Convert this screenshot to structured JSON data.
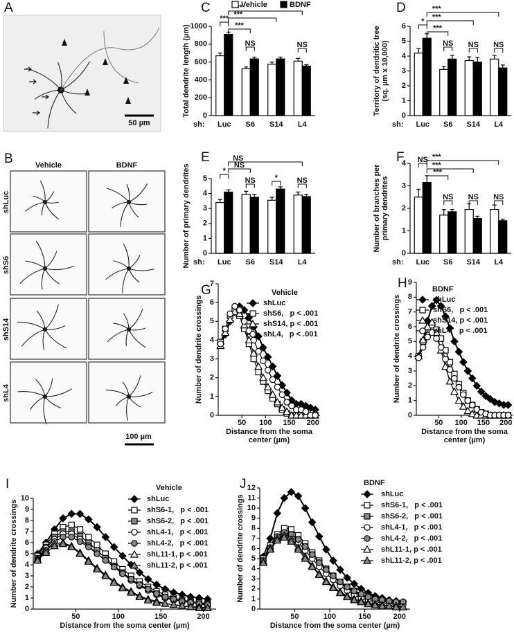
{
  "micrographs": [
    {
      "panel": "A",
      "scale_bar": "50 µm"
    },
    {
      "panel": "B",
      "columns": [
        "Vehicle",
        "BDNF"
      ],
      "rows": [
        "shLuc",
        "shS6",
        "shS14",
        "shL4"
      ],
      "scale_bar": "100 µm"
    }
  ],
  "chart_data": [
    {
      "panel": "C",
      "type": "bar",
      "ylabel": [
        "Total dendrite length (µm)"
      ],
      "xlabel": "sh:",
      "categories": [
        "Luc",
        "S6",
        "S14",
        "L4"
      ],
      "ylim": [
        0,
        1000
      ],
      "yticks": [
        0,
        200,
        400,
        600,
        800,
        1000
      ],
      "legend": true,
      "series": [
        {
          "name": "Vehicle",
          "color": "#ffffff",
          "values": [
            670,
            525,
            575,
            610
          ],
          "errors": [
            30,
            20,
            25,
            30
          ]
        },
        {
          "name": "BDNF",
          "color": "#000000",
          "values": [
            910,
            635,
            635,
            555
          ],
          "errors": [
            25,
            20,
            20,
            15
          ]
        }
      ],
      "annotations": [
        "***",
        "***",
        "***",
        "***",
        "NS",
        "NS"
      ]
    },
    {
      "panel": "D",
      "type": "bar",
      "ylabel": [
        "Territory of dendritic tree",
        "(sq. µm x 10,000)"
      ],
      "xlabel": "sh:",
      "categories": [
        "Luc",
        "S6",
        "S14",
        "L4"
      ],
      "ylim": [
        0,
        6
      ],
      "yticks": [
        0,
        1,
        2,
        3,
        4,
        5,
        6
      ],
      "series": [
        {
          "color": "#ffffff",
          "values": [
            4.2,
            3.1,
            3.7,
            3.8
          ],
          "errors": [
            0.3,
            0.2,
            0.25,
            0.25
          ]
        },
        {
          "color": "#000000",
          "values": [
            5.2,
            3.8,
            3.6,
            3.2
          ],
          "errors": [
            0.3,
            0.25,
            0.3,
            0.2
          ]
        }
      ],
      "annotations": [
        "*",
        "***",
        "***",
        "***",
        "NS",
        "NS",
        "NS"
      ]
    },
    {
      "panel": "E",
      "type": "bar",
      "ylabel": [
        "Number of primary dendrites"
      ],
      "xlabel": "sh:",
      "categories": [
        "Luc",
        "S6",
        "S14",
        "L4"
      ],
      "ylim": [
        0,
        5
      ],
      "yticks": [
        0,
        1,
        2,
        3,
        4,
        5
      ],
      "series": [
        {
          "color": "#ffffff",
          "values": [
            3.4,
            3.95,
            3.55,
            3.9
          ],
          "errors": [
            0.2,
            0.2,
            0.2,
            0.2
          ]
        },
        {
          "color": "#000000",
          "values": [
            4.1,
            3.75,
            4.3,
            3.8
          ],
          "errors": [
            0.15,
            0.2,
            0.15,
            0.15
          ]
        }
      ],
      "annotations": [
        "*",
        "NS",
        "NS",
        "NS",
        "*",
        "NS"
      ]
    },
    {
      "panel": "F",
      "type": "bar",
      "ylabel": [
        "Number of branches per",
        "primary dendrites"
      ],
      "xlabel": "sh:",
      "categories": [
        "Luc",
        "S6",
        "S14",
        "L4"
      ],
      "ylim": [
        0,
        4
      ],
      "yticks": [
        0,
        1,
        2,
        3,
        4
      ],
      "series": [
        {
          "color": "#ffffff",
          "values": [
            2.5,
            1.7,
            1.95,
            1.95
          ],
          "errors": [
            0.35,
            0.25,
            0.25,
            0.2
          ]
        },
        {
          "color": "#000000",
          "values": [
            3.15,
            1.85,
            1.55,
            1.45
          ],
          "errors": [
            0.3,
            0.1,
            0.1,
            0.07
          ]
        }
      ],
      "annotations": [
        "NS",
        "***",
        "***",
        "***",
        "NS",
        "NS",
        "NS"
      ]
    },
    {
      "panel": "G",
      "type": "line",
      "legend_title": "Vehicle",
      "ylabel": [
        "Number of dendrite crossings"
      ],
      "xlabel": [
        "Distance from the soma",
        "center (µm)"
      ],
      "x": [
        5,
        15,
        25,
        35,
        45,
        55,
        65,
        75,
        85,
        95,
        105,
        115,
        125,
        135,
        145,
        155,
        165,
        175,
        185,
        195,
        205
      ],
      "xlim": [
        0,
        215
      ],
      "xticks": [
        50,
        100,
        150,
        200
      ],
      "ylim": [
        0,
        7
      ],
      "yticks": [
        0,
        1,
        2,
        3,
        4,
        5,
        6,
        7
      ],
      "series": [
        {
          "name": "shLuc",
          "marker": "diamond",
          "color": "#000000",
          "values": [
            3.8,
            4.3,
            5.0,
            5.5,
            5.8,
            5.6,
            5.2,
            4.7,
            4.2,
            3.6,
            3.1,
            2.6,
            2.1,
            1.6,
            1.2,
            0.8,
            0.6,
            0.6,
            0.5,
            0.4,
            0.3
          ]
        },
        {
          "name": "shS6,   p < .001",
          "marker": "square",
          "color": "#ffffff",
          "values": [
            3.9,
            4.6,
            5.3,
            5.6,
            5.3,
            4.6,
            3.8,
            3.0,
            2.3,
            1.8,
            1.3,
            0.9,
            0.6,
            0.3,
            0.1,
            0,
            0,
            0,
            0,
            0,
            0
          ]
        },
        {
          "name": "shS14, p < .001",
          "marker": "triangle",
          "color": "#ffffff",
          "values": [
            3.7,
            4.4,
            5.1,
            5.5,
            5.4,
            4.8,
            4.0,
            3.3,
            2.6,
            2.0,
            1.5,
            1.1,
            0.7,
            0.4,
            0.2,
            0,
            0,
            0,
            0,
            0,
            0
          ]
        },
        {
          "name": "shL4,   p < .001",
          "marker": "circle",
          "color": "#ffffff",
          "values": [
            3.8,
            4.6,
            5.4,
            5.8,
            5.6,
            5.0,
            4.5,
            4.0,
            3.4,
            2.9,
            2.4,
            1.9,
            1.5,
            1.1,
            0.7,
            0.5,
            0.3,
            0.3,
            0.2,
            0,
            0
          ]
        }
      ]
    },
    {
      "panel": "H",
      "type": "line",
      "legend_title": "BDNF",
      "ylabel": [
        "Number of dendrite crossings"
      ],
      "xlabel": [
        "Distance from the soma",
        "center (µm)"
      ],
      "x": [
        5,
        15,
        25,
        35,
        45,
        55,
        65,
        75,
        85,
        95,
        105,
        115,
        125,
        135,
        145,
        155,
        165,
        175,
        185,
        195,
        205
      ],
      "xlim": [
        0,
        215
      ],
      "xticks": [
        50,
        100,
        150,
        200
      ],
      "ylim": [
        0,
        9
      ],
      "yticks": [
        0,
        1,
        2,
        3,
        4,
        5,
        6,
        7,
        8,
        9
      ],
      "series": [
        {
          "name": "shLuc",
          "marker": "diamond",
          "color": "#000000",
          "values": [
            4.0,
            5.0,
            6.4,
            7.4,
            7.8,
            7.4,
            6.7,
            5.9,
            5.0,
            4.3,
            3.6,
            3.0,
            2.5,
            2.0,
            1.6,
            1.3,
            1.1,
            0.9,
            0.8,
            0.7,
            0.7
          ]
        },
        {
          "name": "shS6,   p < .001",
          "marker": "square",
          "color": "#ffffff",
          "values": [
            4.0,
            5.0,
            5.8,
            6.1,
            5.8,
            5.2,
            4.4,
            3.6,
            2.8,
            2.1,
            1.5,
            1.0,
            0.7,
            0.4,
            0.2,
            0.1,
            0,
            0,
            0,
            0,
            0
          ]
        },
        {
          "name": "shS14, p < .001",
          "marker": "triangle",
          "color": "#ffffff",
          "values": [
            4.0,
            5.1,
            6.0,
            6.3,
            5.6,
            4.4,
            3.3,
            2.3,
            1.6,
            1.0,
            0.6,
            0.3,
            0.1,
            0,
            0,
            0,
            0,
            0,
            0,
            0,
            0
          ]
        },
        {
          "name": "shL4,   p < .001",
          "marker": "circle",
          "color": "#ffffff",
          "values": [
            3.9,
            4.6,
            5.3,
            5.6,
            5.2,
            4.6,
            3.8,
            3.1,
            2.5,
            1.9,
            1.4,
            1.0,
            0.7,
            0.4,
            0.2,
            0.1,
            0,
            0,
            0,
            0,
            0
          ]
        }
      ]
    },
    {
      "panel": "I",
      "type": "line",
      "legend_title": "Vehicle",
      "ylabel": [
        "Number of dendrite crossings"
      ],
      "xlabel": [
        "Distance from the soma center (µm)"
      ],
      "x": [
        5,
        15,
        25,
        35,
        45,
        55,
        65,
        75,
        85,
        95,
        105,
        115,
        125,
        135,
        145,
        155,
        165,
        175,
        185,
        195,
        205
      ],
      "xlim": [
        0,
        215
      ],
      "xticks": [
        50,
        100,
        150,
        200
      ],
      "ylim": [
        0,
        10
      ],
      "yticks": [
        0,
        1,
        2,
        3,
        4,
        5,
        6,
        7,
        8,
        9,
        10
      ],
      "series": [
        {
          "name": "shLuc",
          "marker": "diamond",
          "color": "#000000",
          "values": [
            5.0,
            6.0,
            7.2,
            8.2,
            8.6,
            8.6,
            8.1,
            7.4,
            6.5,
            5.6,
            4.8,
            4.0,
            3.3,
            2.7,
            2.2,
            1.8,
            1.5,
            1.3,
            1.1,
            1.0,
            0.9
          ]
        },
        {
          "name": "shS6-1,   p < .001",
          "marker": "square",
          "color": "#ffffff",
          "values": [
            4.8,
            5.8,
            6.8,
            7.4,
            7.6,
            7.2,
            6.5,
            5.8,
            5.0,
            4.3,
            3.6,
            3.0,
            2.5,
            2.0,
            1.6,
            1.3,
            1.0,
            0.8,
            0.7,
            0.6,
            0.5
          ]
        },
        {
          "name": "shS6-2,   p < .001",
          "marker": "square",
          "color": "#888888",
          "values": [
            4.6,
            5.6,
            6.5,
            7.0,
            7.0,
            6.6,
            6.0,
            5.3,
            4.6,
            3.9,
            3.3,
            2.7,
            2.2,
            1.8,
            1.4,
            1.1,
            0.9,
            0.7,
            0.6,
            0.5,
            0.4
          ]
        },
        {
          "name": "shL4-1,   p < .001",
          "marker": "circle",
          "color": "#ffffff",
          "values": [
            4.5,
            5.5,
            6.3,
            6.8,
            6.8,
            6.3,
            5.7,
            5.0,
            4.4,
            3.8,
            3.2,
            2.6,
            2.1,
            1.7,
            1.3,
            1.0,
            0.8,
            0.7,
            0.6,
            0.5,
            0.3
          ]
        },
        {
          "name": "shL4-2,   p < .001",
          "marker": "circle",
          "color": "#888888",
          "values": [
            4.4,
            5.3,
            6.1,
            6.5,
            6.5,
            6.1,
            5.6,
            5.0,
            4.4,
            3.8,
            3.2,
            2.7,
            2.2,
            1.8,
            1.4,
            1.1,
            0.9,
            0.7,
            0.6,
            0.5,
            0.4
          ]
        },
        {
          "name": "shL11-1, p < .001",
          "marker": "triangle",
          "color": "#ffffff",
          "values": [
            4.5,
            5.3,
            5.9,
            6.0,
            5.7,
            5.1,
            4.4,
            3.7,
            3.1,
            2.5,
            2.0,
            1.6,
            1.2,
            0.9,
            0.7,
            0.5,
            0.4,
            0.3,
            0.2,
            0.2,
            0.1
          ]
        },
        {
          "name": "shL11-2, p < .001",
          "marker": "triangle",
          "color": "#888888",
          "values": [
            4.4,
            5.1,
            5.7,
            5.9,
            5.6,
            5.0,
            4.3,
            3.6,
            3.0,
            2.4,
            1.9,
            1.5,
            1.1,
            0.8,
            0.6,
            0.5,
            0.4,
            0.3,
            0.2,
            0.1,
            0.1
          ]
        }
      ]
    },
    {
      "panel": "J",
      "type": "line",
      "legend_title": "BDNF",
      "ylabel": [
        "Number of dendrite crossings"
      ],
      "xlabel": [
        "Distance from the soma center (µm)"
      ],
      "x": [
        5,
        15,
        25,
        35,
        45,
        55,
        65,
        75,
        85,
        95,
        105,
        115,
        125,
        135,
        145,
        155,
        165,
        175,
        185,
        195,
        205
      ],
      "xlim": [
        0,
        215
      ],
      "xticks": [
        50,
        100,
        150,
        200
      ],
      "ylim": [
        0,
        12
      ],
      "yticks": [
        0,
        1,
        2,
        3,
        4,
        5,
        6,
        7,
        8,
        9,
        10,
        11,
        12
      ],
      "series": [
        {
          "name": "shLuc",
          "marker": "diamond",
          "color": "#000000",
          "values": [
            5.2,
            7.0,
            9.5,
            11.0,
            11.6,
            11.2,
            10.0,
            8.6,
            7.2,
            5.9,
            4.8,
            3.9,
            3.1,
            2.5,
            2.0,
            1.6,
            1.3,
            1.1,
            0.9,
            0.8,
            0.7
          ]
        },
        {
          "name": "shS6-1,   p < .001",
          "marker": "square",
          "color": "#ffffff",
          "values": [
            5.0,
            6.3,
            7.4,
            8.0,
            7.9,
            7.3,
            6.5,
            5.6,
            4.8,
            4.0,
            3.3,
            2.7,
            2.2,
            1.8,
            1.4,
            1.1,
            0.9,
            0.8,
            0.7,
            0.6,
            0.6
          ]
        },
        {
          "name": "shS6-2,   p < .001",
          "marker": "square",
          "color": "#888888",
          "values": [
            4.8,
            6.0,
            7.0,
            7.5,
            7.4,
            6.9,
            6.2,
            5.4,
            4.6,
            3.9,
            3.2,
            2.6,
            2.1,
            1.7,
            1.4,
            1.1,
            0.9,
            0.8,
            0.7,
            0.6,
            0.6
          ]
        },
        {
          "name": "shL4-1,   p < .001",
          "marker": "circle",
          "color": "#ffffff",
          "values": [
            4.8,
            6.0,
            7.0,
            7.4,
            7.2,
            6.6,
            5.8,
            5.0,
            4.2,
            3.5,
            2.9,
            2.3,
            1.8,
            1.4,
            1.1,
            0.9,
            0.7,
            0.6,
            0.5,
            0.5,
            0.4
          ]
        },
        {
          "name": "shL4-2,   p < .001",
          "marker": "circle",
          "color": "#888888",
          "values": [
            4.8,
            6.1,
            7.2,
            7.6,
            7.4,
            6.9,
            6.2,
            5.4,
            4.6,
            3.9,
            3.3,
            2.7,
            2.2,
            1.8,
            1.5,
            1.2,
            1.0,
            0.9,
            0.8,
            0.7,
            0.7
          ]
        },
        {
          "name": "shL11-1, p < .001",
          "marker": "triangle",
          "color": "#ffffff",
          "values": [
            4.7,
            6.0,
            7.0,
            7.3,
            6.9,
            6.1,
            5.2,
            4.3,
            3.5,
            2.8,
            2.2,
            1.7,
            1.3,
            1.0,
            0.8,
            0.6,
            0.5,
            0.4,
            0.3,
            0.3,
            0.2
          ]
        },
        {
          "name": "shL11-2, p < .001",
          "marker": "triangle",
          "color": "#888888",
          "values": [
            4.6,
            5.9,
            6.8,
            7.1,
            6.7,
            5.9,
            5.0,
            4.2,
            3.4,
            2.7,
            2.1,
            1.6,
            1.2,
            0.9,
            0.7,
            0.5,
            0.4,
            0.3,
            0.3,
            0.2,
            0.2
          ]
        }
      ]
    }
  ]
}
